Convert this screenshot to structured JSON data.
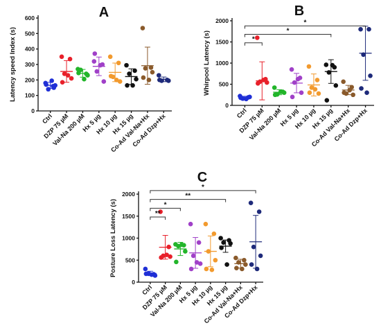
{
  "categories": [
    "Ctrl",
    "DZP 75 µM",
    "Val-Na 200 µM",
    "Hx 5 µg",
    "Hx 10 µg",
    "Hx 15 µg",
    "Co-Ad Val-Na+Hx",
    "Co-Ad Dzp+Hx"
  ],
  "colors": [
    "#1f2fd6",
    "#e8202a",
    "#22b52a",
    "#a040c8",
    "#f29a2e",
    "#111111",
    "#8a5a2b",
    "#1e2a7a"
  ],
  "chart_data": [
    {
      "panel": "A",
      "type": "scatter",
      "ylabel": "Latency speed Index (s)",
      "ylim": [
        0,
        600
      ],
      "yticks": [
        0,
        100,
        200,
        300,
        400,
        500,
        600
      ],
      "categories": [
        "Ctrl",
        "DZP 75 µM",
        "Val-Na 200 µM",
        "Hx 5 µg",
        "Hx 10 µg",
        "Hx 15 µg",
        "Co-Ad Val-Na+Hx",
        "Co-Ad Dzp+Hx"
      ],
      "points": [
        [
          180,
          150,
          140,
          165,
          170,
          195,
          160
        ],
        [
          350,
          335,
          240,
          210,
          185,
          230
        ],
        [
          270,
          240,
          265,
          230,
          245,
          205
        ],
        [
          320,
          300,
          255,
          190,
          370,
          295
        ],
        [
          350,
          310,
          220,
          190,
          225,
          200
        ],
        [
          295,
          260,
          240,
          205,
          165,
          165
        ],
        [
          535,
          280,
          275,
          250,
          215,
          200
        ],
        [
          230,
          200,
          195,
          195,
          200
        ]
      ],
      "mean": [
        165,
        255,
        243,
        288,
        249,
        222,
        292,
        204
      ],
      "sd": [
        20,
        70,
        25,
        60,
        60,
        50,
        120,
        15
      ],
      "significance": []
    },
    {
      "panel": "B",
      "type": "scatter",
      "ylabel": "Whirpool Latency (s)",
      "ylim": [
        0,
        2000
      ],
      "yticks": [
        0,
        500,
        1000,
        1500,
        2000
      ],
      "categories": [
        "Ctrl",
        "DZP 75 µM",
        "Val-Na 200 µM",
        "Hx 5 µg",
        "Hx 10 µg",
        "Hx 15 µg",
        "Co-Ad Val-Na+Hx",
        "Co-Ad Dzp+Hx"
      ],
      "points": [
        [
          220,
          190,
          160,
          200,
          180,
          150
        ],
        [
          1600,
          620,
          560,
          540,
          520,
          600
        ],
        [
          420,
          320,
          260,
          300,
          250,
          320
        ],
        [
          850,
          650,
          540,
          300,
          200,
          620
        ],
        [
          920,
          600,
          420,
          280,
          300,
          380
        ],
        [
          960,
          900,
          780,
          470,
          120,
          950
        ],
        [
          560,
          430,
          280,
          250,
          300,
          360
        ],
        [
          1800,
          1800,
          1200,
          700,
          400,
          300
        ]
      ],
      "mean": [
        185,
        580,
        311,
        527,
        483,
        800,
        363,
        1233
      ],
      "sd": [
        30,
        450,
        60,
        230,
        260,
        280,
        110,
        640
      ],
      "significance": [
        {
          "from": 0,
          "to": 1,
          "label": "*",
          "level": 1
        },
        {
          "from": 0,
          "to": 5,
          "label": "*",
          "level": 2
        },
        {
          "from": 0,
          "to": 7,
          "label": "*",
          "level": 3
        }
      ]
    },
    {
      "panel": "C",
      "type": "scatter",
      "ylabel": "Posture Loss Latency (s)",
      "ylim": [
        0,
        2000
      ],
      "yticks": [
        0,
        500,
        1000,
        1500,
        2000
      ],
      "categories": [
        "Ctrl",
        "DZP 75 µM",
        "Val-Na 200 µM",
        "Hx 5 µg",
        "Hx 10 µg",
        "Hx 15 µg",
        "Co-Ad Val-Na+Hx",
        "Co-Ad Dzp+Hx"
      ],
      "points": [
        [
          300,
          180,
          200,
          150,
          190,
          170
        ],
        [
          1600,
          800,
          600,
          580,
          560,
          620
        ],
        [
          860,
          840,
          820,
          700,
          460,
          850
        ],
        [
          1320,
          900,
          600,
          420,
          300,
          450
        ],
        [
          1320,
          1100,
          700,
          500,
          300,
          280
        ],
        [
          1000,
          950,
          900,
          880,
          780,
          400
        ],
        [
          550,
          500,
          450,
          400,
          320,
          300
        ],
        [
          1800,
          1600,
          800,
          600,
          400,
          300
        ]
      ],
      "mean": [
        198,
        793,
        755,
        665,
        700,
        818,
        420,
        917
      ],
      "sd": [
        50,
        270,
        150,
        350,
        350,
        140,
        100,
        600
      ],
      "significance": [
        {
          "from": 0,
          "to": 1,
          "label": "**",
          "level": 1
        },
        {
          "from": 0,
          "to": 2,
          "label": "*",
          "level": 2
        },
        {
          "from": 0,
          "to": 5,
          "label": "**",
          "level": 3
        },
        {
          "from": 0,
          "to": 7,
          "label": "*",
          "level": 4
        }
      ]
    }
  ]
}
